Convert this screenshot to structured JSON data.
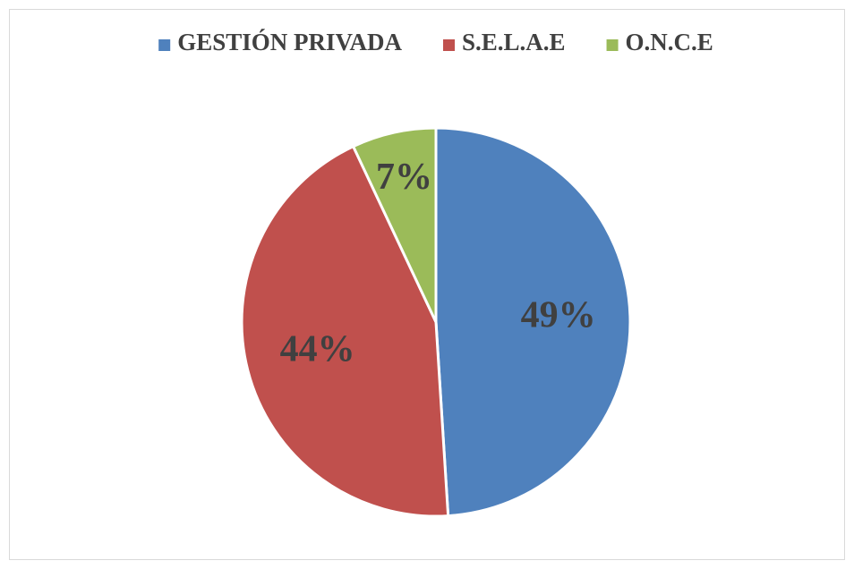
{
  "chart_data": {
    "type": "pie",
    "categories": [
      "GESTIÓN PRIVADA",
      "S.E.L.A.E",
      "O.N.C.E"
    ],
    "values": [
      49,
      44,
      7
    ],
    "value_labels": [
      "49%",
      "44%",
      "7%"
    ],
    "colors": [
      "#4f81bd",
      "#c0504d",
      "#9bbb59"
    ],
    "legend": "top"
  }
}
